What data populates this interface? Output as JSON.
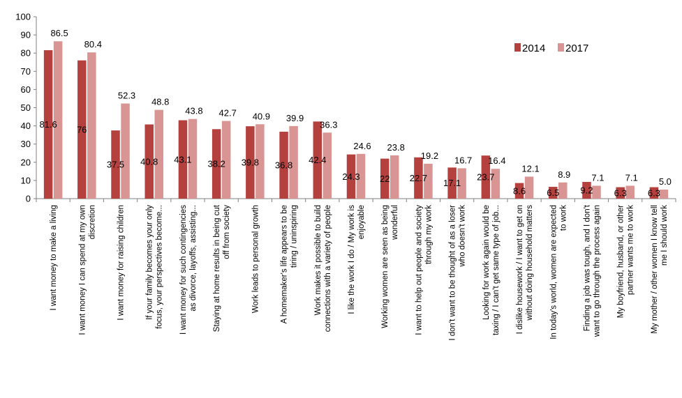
{
  "chart_data": {
    "type": "bar",
    "title": "",
    "xlabel": "",
    "ylabel": "",
    "ylim": [
      0,
      100
    ],
    "yticks": [
      "0",
      "10",
      "20",
      "30",
      "40",
      "50",
      "60",
      "70",
      "80",
      "90",
      "100"
    ],
    "legend_position": "top-right",
    "grid": false,
    "categories": [
      [
        "I want money to make a living"
      ],
      [
        "I want money I can spend at my own",
        "discretion"
      ],
      [
        "I want money for raising children"
      ],
      [
        "If your family becomes your only",
        "focus, your perspectives become..."
      ],
      [
        "I want money for such contingencies",
        "as divorce, layoffs, assisting..."
      ],
      [
        "Staying at home results in being cut",
        "off from society"
      ],
      [
        "Work leads to personal growth"
      ],
      [
        "A homemaker's life appears to be",
        "tiring / uninspiring"
      ],
      [
        "Work makes it possible to build",
        "connections with a variety of people"
      ],
      [
        "I like the work I do / My work is",
        "enjoyable"
      ],
      [
        "Working women are seen as being",
        "wonderful"
      ],
      [
        "I want to help out people and society",
        "through my work"
      ],
      [
        "I don't want to be thought of as a loser",
        "who doesn't work"
      ],
      [
        "Looking for work again would be",
        "taxing / I can't get same type of job..."
      ],
      [
        "I dislike housework / I want to get on",
        "without doing household matters"
      ],
      [
        "In today's world, women are expected",
        "to work"
      ],
      [
        "Finding a job was tough, and I don't",
        "want to go through the process again"
      ],
      [
        "My boyfriend, husband, or other",
        "partner wants me to work"
      ],
      [
        "My mother / other women I know tell",
        "me I should work"
      ]
    ],
    "series": [
      {
        "name": "2014",
        "color": "#b5413e",
        "values": [
          81.6,
          76,
          37.5,
          40.8,
          43.1,
          38.2,
          39.8,
          36.8,
          42.4,
          24.3,
          22,
          22.7,
          17.1,
          23.7,
          8.6,
          6.5,
          9.2,
          6.3,
          6.3
        ],
        "labels": [
          "81.6",
          "76",
          "37.5",
          "40.8",
          "43.1",
          "38.2",
          "39.8",
          "36.8",
          "42.4",
          "24.3",
          "22",
          "22.7",
          "17.1",
          "23.7",
          "8.6",
          "6.5",
          "9.2",
          "6.3",
          "6.3"
        ]
      },
      {
        "name": "2017",
        "color": "#d99593",
        "values": [
          86.5,
          80.4,
          52.3,
          48.8,
          43.8,
          42.7,
          40.9,
          39.9,
          36.3,
          24.6,
          23.8,
          19.2,
          16.7,
          16.4,
          12.1,
          8.9,
          7.1,
          7.1,
          5.0
        ],
        "labels": [
          "86.5",
          "80.4",
          "52.3",
          "48.8",
          "43.8",
          "42.7",
          "40.9",
          "39.9",
          "36.3",
          "24.6",
          "23.8",
          "19.2",
          "16.7",
          "16.4",
          "12.1",
          "8.9",
          "7.1",
          "7.1",
          "5.0"
        ]
      }
    ]
  }
}
